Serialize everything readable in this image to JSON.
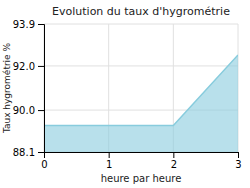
{
  "chart_data": {
    "type": "area",
    "title": "Evolution du taux d'hygrométrie",
    "xlabel": "heure par heure",
    "ylabel": "Taux hygrométrie %",
    "x": [
      0,
      2,
      3
    ],
    "values": [
      89.3,
      89.3,
      92.5
    ],
    "color": "#88ccdd",
    "xlim": [
      0,
      3
    ],
    "ylim": [
      88.1,
      93.9
    ],
    "xticks": [
      0,
      1,
      2,
      3
    ],
    "yticks": [
      88.1,
      {
        "value": 90.0,
        "label": "90.0"
      },
      {
        "value": 92.0,
        "label": "92.0"
      },
      93.9
    ],
    "grid": true
  }
}
